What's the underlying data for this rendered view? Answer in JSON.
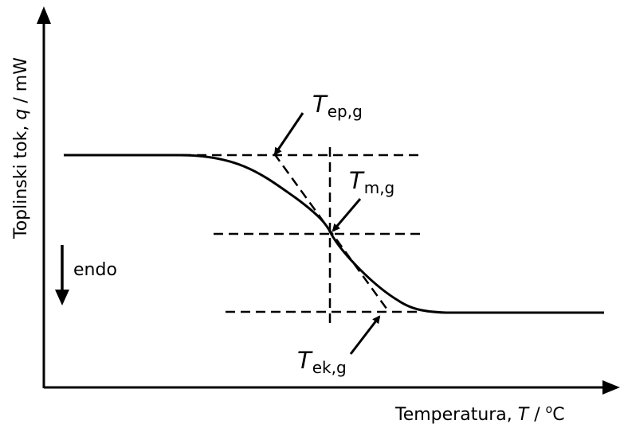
{
  "diagram": {
    "axes": {
      "y_label": {
        "prefix": "Toplinski tok, ",
        "symbol": "q",
        "suffix": " / mW"
      },
      "x_label": {
        "prefix": "Temperatura, ",
        "symbol": "T",
        "suffix": " / ",
        "degree": "o",
        "unit": "C"
      }
    },
    "endo_label": "endo",
    "annotations": {
      "t_ep": {
        "symbol": "T",
        "subscript": "ep,g"
      },
      "t_m": {
        "symbol": "T",
        "subscript": "m,g"
      },
      "t_ek": {
        "symbol": "T",
        "subscript": "ek,g"
      }
    },
    "colors": {
      "line": "#000000",
      "background": "#ffffff"
    }
  }
}
